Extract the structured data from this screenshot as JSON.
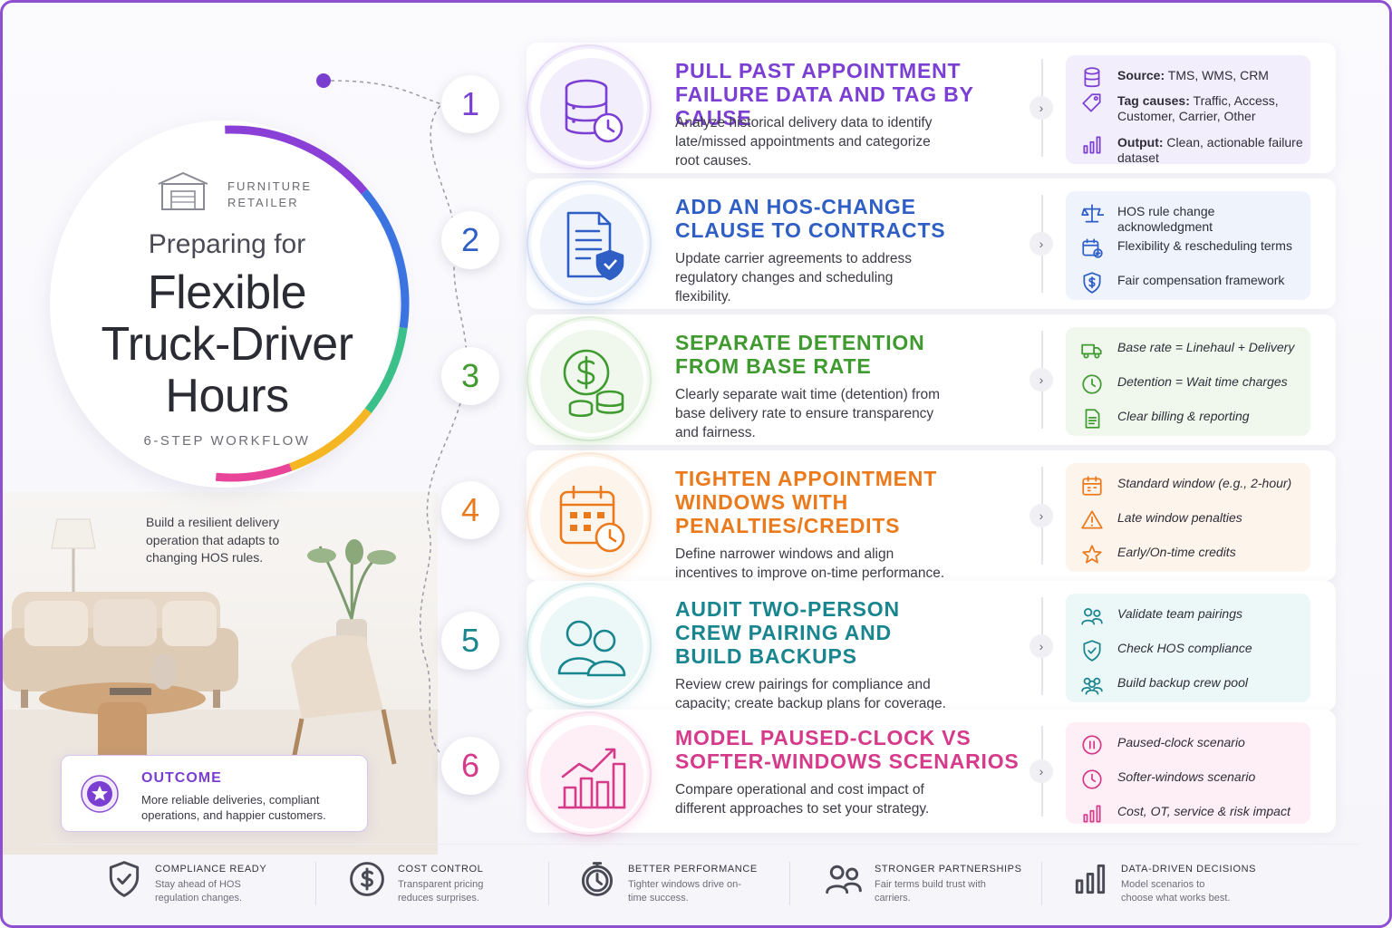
{
  "hero": {
    "brand_line1": "FURNITURE",
    "brand_line2": "RETAILER",
    "preparing": "Preparing for",
    "title_line1": "Flexible",
    "title_line2": "Truck-Driver",
    "title_line3": "Hours",
    "workflow": "6-STEP WORKFLOW",
    "tagline": "Build a resilient delivery operation that adapts to changing HOS rules.",
    "ring_colors": [
      "#8a3fd6",
      "#3b74e0",
      "#3cc08a",
      "#f4b623",
      "#e8459a"
    ]
  },
  "outcome": {
    "title": "OUTCOME",
    "text": "More reliable deliveries, compliant operations, and happier customers."
  },
  "steps": [
    {
      "number": "1",
      "color": "#7b3fd4",
      "tint": "#f3eefc",
      "title_line1": "PULL PAST APPOINTMENT",
      "title_line2": "FAILURE DATA AND TAG BY CAUSE",
      "desc": "Analyze historical delivery data to identify late/missed appointments and categorize root causes.",
      "icon": "database-clock-icon",
      "items": [
        {
          "icon": "database-icon",
          "label": "Source:",
          "text": "TMS, WMS, CRM"
        },
        {
          "icon": "tag-icon",
          "label": "Tag causes:",
          "text": "Traffic, Access, Customer, Carrier, Other"
        },
        {
          "icon": "bar-chart-icon",
          "label": "Output:",
          "text": "Clean, actionable failure dataset"
        }
      ]
    },
    {
      "number": "2",
      "color": "#2f5fc4",
      "tint": "#eef3fc",
      "title_line1": "ADD AN HOS-CHANGE",
      "title_line2": "CLAUSE TO CONTRACTS",
      "desc": "Update carrier agreements to address regulatory changes and scheduling flexibility.",
      "icon": "contract-shield-icon",
      "items": [
        {
          "icon": "scale-icon",
          "text": "HOS rule change acknowledgment"
        },
        {
          "icon": "calendar-add-icon",
          "text": "Flexibility & rescheduling terms"
        },
        {
          "icon": "dollar-shield-icon",
          "text": "Fair compensation framework"
        }
      ]
    },
    {
      "number": "3",
      "color": "#3f9a2f",
      "tint": "#f0f8ee",
      "title_line1": "SEPARATE DETENTION",
      "title_line2": "FROM BASE RATE",
      "desc": "Clearly separate wait time (detention) from base delivery rate to ensure transparency and fairness.",
      "icon": "dollar-coins-icon",
      "items": [
        {
          "icon": "truck-icon",
          "text": "Base rate = Linehaul + Delivery"
        },
        {
          "icon": "clock-icon",
          "text": "Detention = Wait time charges"
        },
        {
          "icon": "document-icon",
          "text": "Clear billing & reporting"
        }
      ]
    },
    {
      "number": "4",
      "color": "#ea7a1c",
      "tint": "#fdf4ec",
      "title_line1": "TIGHTEN APPOINTMENT",
      "title_line2": "WINDOWS WITH",
      "title_line3": "PENALTIES/CREDITS",
      "desc": "Define narrower windows and align incentives to improve on-time performance.",
      "icon": "calendar-clock-icon",
      "items": [
        {
          "icon": "calendar-icon",
          "text": "Standard window (e.g., 2-hour)"
        },
        {
          "icon": "warning-icon",
          "text": "Late window penalties"
        },
        {
          "icon": "star-icon",
          "text": "Early/On-time credits"
        }
      ]
    },
    {
      "number": "5",
      "color": "#19868f",
      "tint": "#ecf7f7",
      "title_line1": "AUDIT TWO-PERSON",
      "title_line2": "CREW PAIRING AND",
      "title_line3": "BUILD BACKUPS",
      "desc": "Review crew pairings for compliance and capacity; create backup plans for coverage.",
      "icon": "two-people-icon",
      "items": [
        {
          "icon": "people-icon",
          "text": "Validate team pairings"
        },
        {
          "icon": "shield-check-icon",
          "text": "Check HOS compliance"
        },
        {
          "icon": "group-icon",
          "text": "Build backup crew pool"
        }
      ]
    },
    {
      "number": "6",
      "color": "#d63a8a",
      "tint": "#fdeff5",
      "title_line1": "MODEL PAUSED-CLOCK VS",
      "title_line2": "SOFTER-WINDOWS SCENARIOS",
      "desc": "Compare operational and cost impact of different approaches to set your strategy.",
      "icon": "growth-chart-icon",
      "items": [
        {
          "icon": "pause-icon",
          "text": "Paused-clock scenario"
        },
        {
          "icon": "clock-icon",
          "text": "Softer-windows scenario"
        },
        {
          "icon": "bar-chart-icon",
          "text": "Cost, OT, service & risk impact"
        }
      ]
    }
  ],
  "footer": [
    {
      "icon": "shield-check-icon",
      "title": "COMPLIANCE READY",
      "desc": "Stay ahead of HOS regulation changes."
    },
    {
      "icon": "dollar-circle-icon",
      "title": "COST CONTROL",
      "desc": "Transparent pricing reduces surprises."
    },
    {
      "icon": "stopwatch-icon",
      "title": "BETTER PERFORMANCE",
      "desc": "Tighter windows drive on-time success."
    },
    {
      "icon": "people-icon",
      "title": "STRONGER PARTNERSHIPS",
      "desc": "Fair terms build trust with carriers."
    },
    {
      "icon": "bar-chart-icon",
      "title": "DATA-DRIVEN DECISIONS",
      "desc": "Model scenarios to choose what works best."
    }
  ]
}
